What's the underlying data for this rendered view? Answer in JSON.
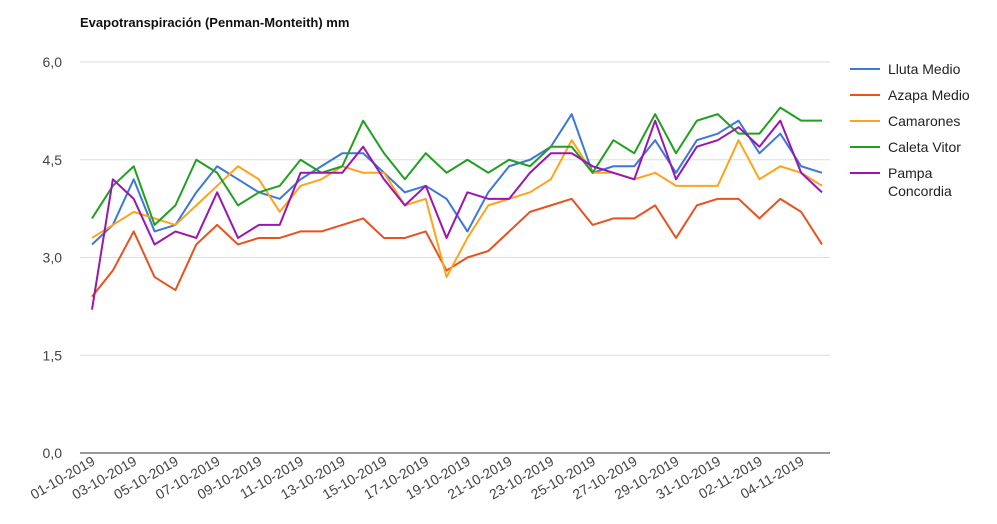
{
  "chart_data": {
    "type": "line",
    "title": "Evapotranspiración (Penman-Monteith) mm",
    "categories": [
      "01-10-2019",
      null,
      "03-10-2019",
      null,
      "05-10-2019",
      null,
      "07-10-2019",
      null,
      "09-10-2019",
      null,
      "11-10-2019",
      null,
      "13-10-2019",
      null,
      "15-10-2019",
      null,
      "17-10-2019",
      null,
      "19-10-2019",
      null,
      "21-10-2019",
      null,
      "23-10-2019",
      null,
      "25-10-2019",
      null,
      "27-10-2019",
      null,
      "29-10-2019",
      null,
      "31-10-2019",
      null,
      "02-11-2019",
      null,
      "04-11-2019",
      null
    ],
    "series": [
      {
        "name": "Lluta Medio",
        "color": "#3c78d8",
        "values": [
          3.2,
          3.5,
          4.2,
          3.4,
          3.5,
          4.0,
          4.4,
          4.2,
          4.0,
          3.9,
          4.2,
          4.4,
          4.6,
          4.6,
          4.3,
          4.0,
          4.1,
          3.9,
          3.4,
          4.0,
          4.4,
          4.5,
          4.7,
          5.2,
          4.3,
          4.4,
          4.4,
          4.8,
          4.3,
          4.8,
          4.9,
          5.1,
          4.6,
          4.9,
          4.4,
          4.3
        ]
      },
      {
        "name": "Azapa Medio",
        "color": "#e8521f",
        "values": [
          2.4,
          2.8,
          3.4,
          2.7,
          2.5,
          3.2,
          3.5,
          3.2,
          3.3,
          3.3,
          3.4,
          3.4,
          3.5,
          3.6,
          3.3,
          3.3,
          3.4,
          2.8,
          3.0,
          3.1,
          3.4,
          3.7,
          3.8,
          3.9,
          3.5,
          3.6,
          3.6,
          3.8,
          3.3,
          3.8,
          3.9,
          3.9,
          3.6,
          3.9,
          3.7,
          3.2
        ]
      },
      {
        "name": "Camarones",
        "color": "#ffa31a",
        "values": [
          3.3,
          3.5,
          3.7,
          3.6,
          3.5,
          3.8,
          4.1,
          4.4,
          4.2,
          3.7,
          4.1,
          4.2,
          4.4,
          4.3,
          4.3,
          3.8,
          3.9,
          2.7,
          3.3,
          3.8,
          3.9,
          4.0,
          4.2,
          4.8,
          4.3,
          4.3,
          4.2,
          4.3,
          4.1,
          4.1,
          4.1,
          4.8,
          4.2,
          4.4,
          4.3,
          4.1
        ]
      },
      {
        "name": "Caleta Vitor",
        "color": "#20a020",
        "values": [
          3.6,
          4.1,
          4.4,
          3.5,
          3.8,
          4.5,
          4.3,
          3.8,
          4.0,
          4.1,
          4.5,
          4.3,
          4.4,
          5.1,
          4.6,
          4.2,
          4.6,
          4.3,
          4.5,
          4.3,
          4.5,
          4.4,
          4.7,
          4.7,
          4.3,
          4.8,
          4.6,
          5.2,
          4.6,
          5.1,
          5.2,
          4.9,
          4.9,
          5.3,
          5.1,
          5.1
        ]
      },
      {
        "name": "Pampa Concordia",
        "color": "#9a16b0",
        "values": [
          2.2,
          4.2,
          3.9,
          3.2,
          3.4,
          3.3,
          4.0,
          3.3,
          3.5,
          3.5,
          4.3,
          4.3,
          4.3,
          4.7,
          4.2,
          3.8,
          4.1,
          3.3,
          4.0,
          3.9,
          3.9,
          4.3,
          4.6,
          4.6,
          4.4,
          4.3,
          4.2,
          5.1,
          4.2,
          4.7,
          4.8,
          5.0,
          4.7,
          5.1,
          4.3,
          4.0
        ]
      }
    ],
    "ylim": [
      0,
      6
    ],
    "yticks": [
      {
        "value": 0,
        "label": "0,0"
      },
      {
        "value": 1.5,
        "label": "1,5"
      },
      {
        "value": 3,
        "label": "3,0"
      },
      {
        "value": 4.5,
        "label": "4,5"
      },
      {
        "value": 6,
        "label": "6,0"
      }
    ],
    "grid": true,
    "legend": "right"
  }
}
